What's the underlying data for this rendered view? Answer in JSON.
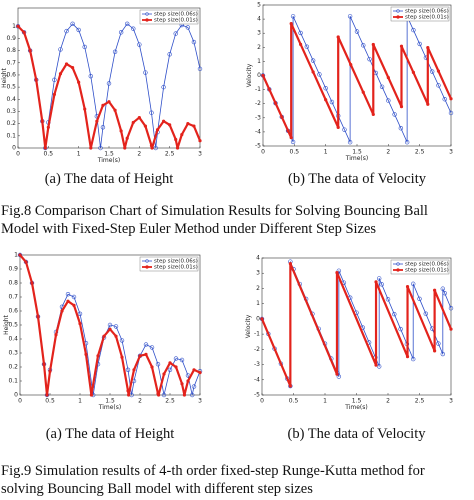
{
  "chart_data": [
    {
      "type": "line",
      "caption": "(a) The data of Height",
      "xlabel": "Time(s)",
      "ylabel": "Height",
      "xlim": [
        0,
        3
      ],
      "ylim": [
        0,
        1.15
      ],
      "xticks": [
        0,
        0.5,
        1,
        1.5,
        2,
        2.5,
        3
      ],
      "yticks": [
        0,
        0.1,
        0.2,
        0.3,
        0.4,
        0.5,
        0.6,
        0.7,
        0.8,
        0.9,
        1
      ],
      "legend": "upper right",
      "series": [
        {
          "name": "step size(0.06s)",
          "color": "#2f4fc9",
          "x": [
            0,
            0.1,
            0.2,
            0.3,
            0.4,
            0.45,
            0.5,
            0.6,
            0.7,
            0.8,
            0.9,
            1,
            1.1,
            1.2,
            1.3,
            1.36,
            1.4,
            1.5,
            1.6,
            1.7,
            1.8,
            1.9,
            2,
            2.1,
            2.2,
            2.27,
            2.3,
            2.4,
            2.5,
            2.6,
            2.7,
            2.8,
            2.9,
            3
          ],
          "values": [
            1,
            0.95,
            0.8,
            0.56,
            0.22,
            0,
            0.21,
            0.56,
            0.81,
            0.96,
            1.02,
            0.97,
            0.83,
            0.59,
            0.26,
            0,
            0.17,
            0.53,
            0.79,
            0.95,
            1.02,
            0.98,
            0.85,
            0.62,
            0.29,
            0,
            0.13,
            0.5,
            0.77,
            0.94,
            1.01,
            0.99,
            0.87,
            0.65
          ]
        },
        {
          "name": "step size(0.01s)",
          "color": "#e3231c",
          "x": [
            0,
            0.1,
            0.2,
            0.3,
            0.4,
            0.45,
            0.5,
            0.6,
            0.7,
            0.8,
            0.9,
            1,
            1.1,
            1.2,
            1.3,
            1.4,
            1.5,
            1.6,
            1.7,
            1.76,
            1.8,
            1.9,
            2,
            2.1,
            2.2,
            2.21,
            2.3,
            2.4,
            2.5,
            2.6,
            2.63,
            2.7,
            2.8,
            2.9,
            3
          ],
          "values": [
            1,
            0.95,
            0.8,
            0.56,
            0.22,
            0,
            0.17,
            0.44,
            0.61,
            0.69,
            0.66,
            0.54,
            0.32,
            0,
            0.22,
            0.35,
            0.38,
            0.31,
            0.14,
            0,
            0.08,
            0.21,
            0.25,
            0.18,
            0.02,
            0,
            0.15,
            0.22,
            0.19,
            0.07,
            0,
            0.11,
            0.2,
            0.18,
            0.06
          ]
        }
      ]
    },
    {
      "type": "line",
      "caption": "(b) The data of Velocity",
      "xlabel": "Time(s)",
      "ylabel": "Velocity",
      "xlim": [
        0,
        3
      ],
      "ylim": [
        -5,
        5
      ],
      "xticks": [
        0,
        0.5,
        1,
        1.5,
        2,
        2.5,
        3
      ],
      "yticks": [
        -5,
        -4,
        -3,
        -2,
        -1,
        0,
        1,
        2,
        3,
        4,
        5
      ],
      "legend": "upper right",
      "series": [
        {
          "name": "step size(0.06s)",
          "color": "#2f4fc9",
          "x": [
            0,
            0.1,
            0.2,
            0.3,
            0.4,
            0.48,
            0.48,
            0.6,
            0.7,
            0.8,
            0.9,
            1,
            1.1,
            1.2,
            1.3,
            1.39,
            1.39,
            1.5,
            1.6,
            1.7,
            1.8,
            1.9,
            2,
            2.1,
            2.2,
            2.3,
            2.3,
            2.4,
            2.5,
            2.6,
            2.7,
            2.8,
            2.9,
            3
          ],
          "values": [
            0,
            -0.98,
            -1.96,
            -2.94,
            -3.92,
            -4.71,
            4.2,
            3.02,
            2.04,
            1.06,
            0.08,
            -0.9,
            -1.88,
            -2.86,
            -3.84,
            -4.73,
            4.2,
            3.12,
            2.14,
            1.16,
            0.18,
            -0.8,
            -1.78,
            -2.76,
            -3.74,
            -4.73,
            4.2,
            3.22,
            2.24,
            1.26,
            0.28,
            -0.7,
            -1.68,
            -2.66
          ]
        },
        {
          "name": "step size(0.01s)",
          "color": "#e3231c",
          "x": [
            0,
            0.1,
            0.2,
            0.3,
            0.4,
            0.45,
            0.45,
            0.6,
            0.8,
            1,
            1.2,
            1.2,
            1.4,
            1.6,
            1.76,
            1.76,
            2,
            2.21,
            2.21,
            2.4,
            2.63,
            2.63,
            2.8,
            3
          ],
          "values": [
            0,
            -0.98,
            -1.96,
            -2.94,
            -3.92,
            -4.41,
            3.68,
            2.21,
            0.25,
            -1.72,
            -3.68,
            2.73,
            0.77,
            -1.19,
            -2.76,
            2.2,
            -0.15,
            -2.21,
            2.08,
            0.22,
            -2.04,
            1.98,
            0.31,
            -1.65
          ]
        }
      ]
    },
    {
      "type": "line",
      "caption": "(a) The data of Height",
      "xlabel": "Time(s)",
      "ylabel": "Height",
      "xlim": [
        0,
        3
      ],
      "ylim": [
        0,
        1
      ],
      "xticks": [
        0,
        0.5,
        1,
        1.5,
        2,
        2.5,
        3
      ],
      "yticks": [
        0,
        0.1,
        0.2,
        0.3,
        0.4,
        0.5,
        0.6,
        0.7,
        0.8,
        0.9,
        1
      ],
      "legend": "upper right",
      "series": [
        {
          "name": "step size(0.06s)",
          "color": "#2f4fc9",
          "x": [
            0,
            0.1,
            0.2,
            0.3,
            0.4,
            0.45,
            0.5,
            0.6,
            0.7,
            0.8,
            0.9,
            1,
            1.1,
            1.2,
            1.22,
            1.3,
            1.4,
            1.5,
            1.6,
            1.7,
            1.8,
            1.86,
            1.9,
            2,
            2.1,
            2.2,
            2.3,
            2.4,
            2.5,
            2.6,
            2.7,
            2.8,
            2.87,
            2.9,
            3
          ],
          "values": [
            1,
            0.95,
            0.8,
            0.56,
            0.22,
            0,
            0.18,
            0.45,
            0.63,
            0.72,
            0.7,
            0.58,
            0.37,
            0.06,
            0,
            0.22,
            0.41,
            0.5,
            0.49,
            0.39,
            0.18,
            0,
            0.1,
            0.28,
            0.36,
            0.34,
            0.22,
            0,
            0.18,
            0.26,
            0.25,
            0.14,
            0,
            0.06,
            0.17
          ]
        },
        {
          "name": "step size(0.01s)",
          "color": "#e3231c",
          "x": [
            0,
            0.1,
            0.2,
            0.3,
            0.4,
            0.45,
            0.5,
            0.6,
            0.7,
            0.8,
            0.9,
            1,
            1.1,
            1.19,
            1.3,
            1.4,
            1.5,
            1.6,
            1.7,
            1.8,
            1.81,
            1.9,
            2,
            2.1,
            2.2,
            2.3,
            2.31,
            2.4,
            2.5,
            2.6,
            2.7,
            2.74,
            2.8,
            2.9,
            3
          ],
          "values": [
            1,
            0.95,
            0.8,
            0.56,
            0.22,
            0,
            0.17,
            0.43,
            0.6,
            0.67,
            0.64,
            0.51,
            0.29,
            0,
            0.28,
            0.42,
            0.47,
            0.42,
            0.27,
            0.03,
            0,
            0.18,
            0.28,
            0.29,
            0.2,
            0.01,
            0,
            0.15,
            0.23,
            0.2,
            0.08,
            0,
            0.1,
            0.18,
            0.16
          ]
        }
      ]
    },
    {
      "type": "line",
      "caption": "(b) The data of Velocity",
      "xlabel": "Time(s)",
      "ylabel": "Velocity",
      "xlim": [
        0,
        3
      ],
      "ylim": [
        -5,
        4
      ],
      "xticks": [
        0,
        0.5,
        1,
        1.5,
        2,
        2.5,
        3
      ],
      "yticks": [
        -5,
        -4,
        -3,
        -2,
        -1,
        0,
        1,
        2,
        3,
        4
      ],
      "legend": "upper right",
      "series": [
        {
          "name": "step size(0.06s)",
          "color": "#2f4fc9",
          "x": [
            0,
            0.1,
            0.2,
            0.3,
            0.4,
            0.45,
            0.45,
            0.5,
            0.6,
            0.7,
            0.8,
            0.9,
            1,
            1.1,
            1.2,
            1.22,
            1.22,
            1.3,
            1.4,
            1.5,
            1.6,
            1.7,
            1.8,
            1.86,
            1.86,
            1.9,
            2,
            2.1,
            2.2,
            2.3,
            2.4,
            2.4,
            2.5,
            2.6,
            2.7,
            2.8,
            2.87,
            2.87,
            2.9,
            3
          ],
          "values": [
            0,
            -0.98,
            -1.96,
            -2.94,
            -3.92,
            -4.41,
            3.76,
            3.27,
            2.29,
            1.31,
            0.33,
            -0.65,
            -1.63,
            -2.61,
            -3.59,
            -3.79,
            3.16,
            2.38,
            1.39,
            0.41,
            -0.57,
            -1.55,
            -2.53,
            -3.12,
            2.66,
            2.27,
            1.29,
            0.31,
            -0.67,
            -1.65,
            -2.64,
            2.3,
            1.32,
            0.34,
            -0.64,
            -1.62,
            -2.31,
            1.98,
            1.69,
            0.7
          ]
        },
        {
          "name": "step size(0.01s)",
          "color": "#e3231c",
          "x": [
            0,
            0.45,
            0.45,
            1.19,
            1.19,
            1.81,
            1.81,
            2.31,
            2.31,
            2.74,
            2.74,
            3
          ],
          "values": [
            0,
            -4.41,
            3.63,
            -3.63,
            3.04,
            -3.04,
            2.43,
            -2.48,
            2.12,
            -2.1,
            1.88,
            -0.67
          ]
        }
      ]
    }
  ],
  "figure_captions": [
    [
      "Fig.8 Comparison Chart of Simulation Results for Solving Bouncing Ball",
      "Model with Fixed-Step Euler Method under Different Step Sizes"
    ],
    [
      "Fig.9 Simulation results of 4-th order fixed-step Runge-Kutta method for",
      "solving Bouncing Ball model with different step sizes"
    ]
  ]
}
